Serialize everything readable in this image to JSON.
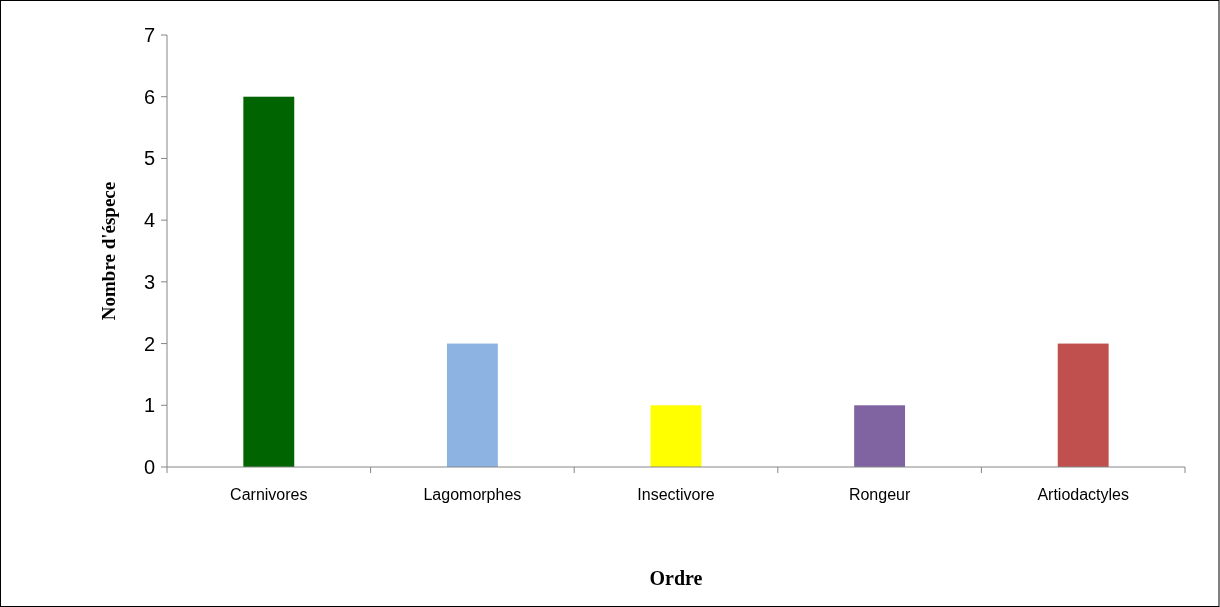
{
  "chart_data": {
    "type": "bar",
    "xlabel": "Ordre",
    "ylabel": "Nombre d'éspece",
    "categories": [
      "Carnivores",
      "Lagomorphes",
      "Insectivore",
      "Rongeur",
      "Artiodactyles"
    ],
    "values": [
      6,
      2,
      1,
      1,
      2
    ],
    "colors": [
      "#006400",
      "#8db3e2",
      "#ffff00",
      "#8064a2",
      "#c0504d"
    ],
    "ylim": [
      0,
      7
    ],
    "yticks": [
      0,
      1,
      2,
      3,
      4,
      5,
      6,
      7
    ],
    "grid": false
  }
}
